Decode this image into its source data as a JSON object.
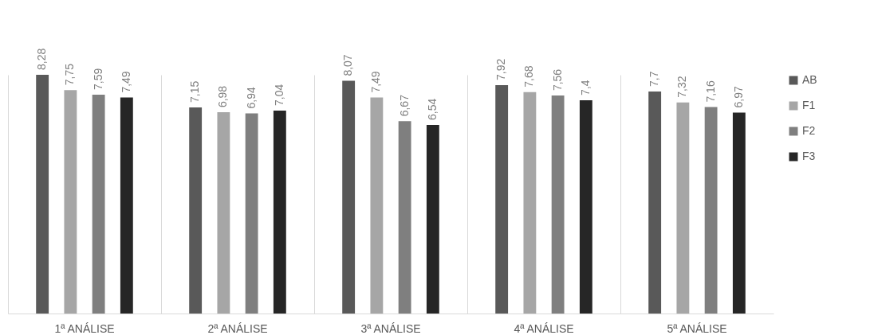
{
  "chart_data": {
    "type": "bar",
    "categories": [
      "1ª ANÁLISE",
      "2ª ANÁLISE",
      "3ª ANÁLISE",
      "4ª ANÁLISE",
      "5ª ANÁLISE"
    ],
    "series": [
      {
        "name": "AB",
        "color": "#595959",
        "values": [
          8.28,
          7.15,
          8.07,
          7.92,
          7.7
        ],
        "value_labels": [
          "8,28",
          "7,15",
          "8,07",
          "7,92",
          "7,7"
        ]
      },
      {
        "name": "F1",
        "color": "#a6a6a6",
        "values": [
          7.75,
          6.98,
          7.49,
          7.68,
          7.32
        ],
        "value_labels": [
          "7,75",
          "6,98",
          "7,49",
          "7,68",
          "7,32"
        ]
      },
      {
        "name": "F2",
        "color": "#7f7f7f",
        "values": [
          7.59,
          6.94,
          6.67,
          7.56,
          7.16
        ],
        "value_labels": [
          "7,59",
          "6,94",
          "6,67",
          "7,56",
          "7,16"
        ]
      },
      {
        "name": "F3",
        "color": "#262626",
        "values": [
          7.49,
          7.04,
          6.54,
          7.4,
          6.97
        ],
        "value_labels": [
          "7,49",
          "7,04",
          "6,54",
          "7,4",
          "6,97"
        ]
      }
    ],
    "grid": "x",
    "legend": "right"
  }
}
